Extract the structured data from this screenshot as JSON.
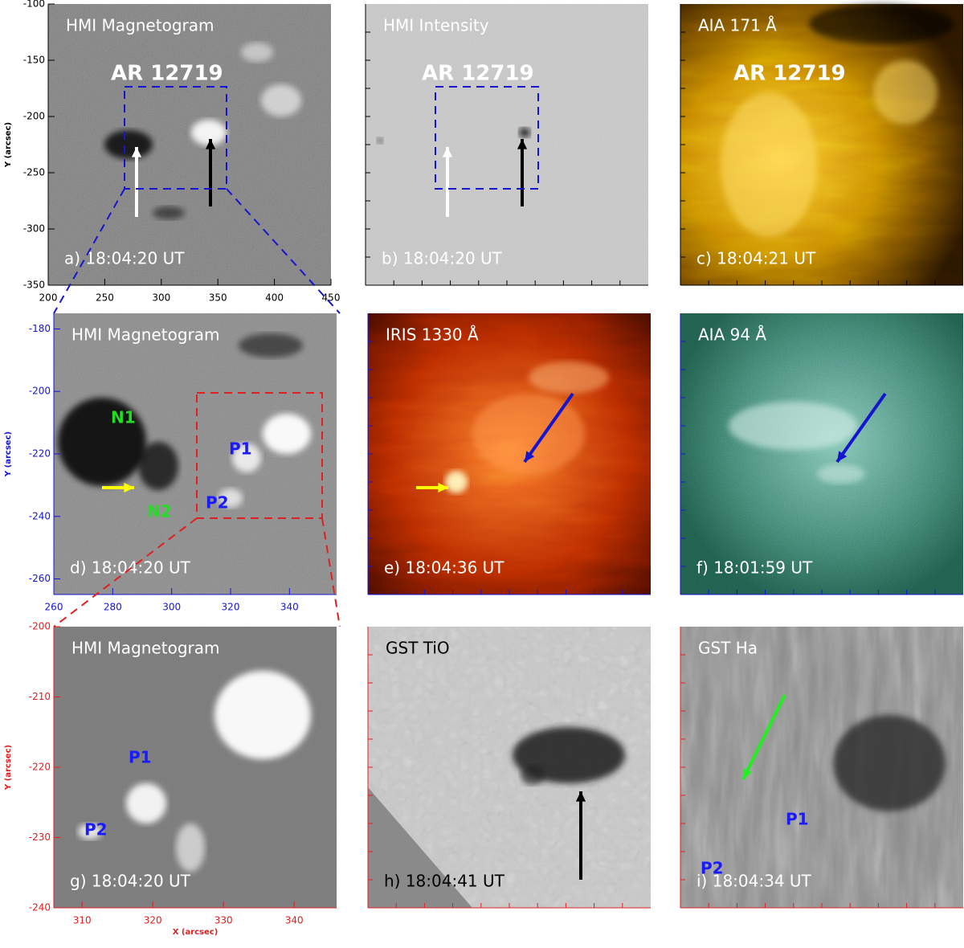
{
  "panels": [
    {
      "title": "HMI Magnetogram",
      "time": "a) 18:04:20 UT",
      "labels": [
        "AR 12719"
      ],
      "axes": {
        "xlim": [
          200,
          450
        ],
        "ylim": [
          -100,
          -350
        ],
        "xticks": [
          200,
          250,
          300,
          350,
          400,
          450
        ],
        "yticks": [
          -100,
          -150,
          -200,
          -250,
          -300,
          -350
        ],
        "ylabel": "Y (arcsec)"
      }
    },
    {
      "title": "HMI Intensity",
      "time": "b) 18:04:20 UT",
      "labels": [
        "AR 12719"
      ]
    },
    {
      "title": "AIA 171 Å",
      "time": "c) 18:04:21 UT",
      "labels": [
        "AR 12719"
      ]
    },
    {
      "title": "HMI Magnetogram",
      "time": "d) 18:04:20 UT",
      "labels": [
        "N1",
        "P1",
        "N2",
        "P2"
      ],
      "axes": {
        "xlim": [
          260,
          356
        ],
        "ylim": [
          -175,
          -265
        ],
        "xticks": [
          260,
          280,
          300,
          320,
          340
        ],
        "yticks": [
          -180,
          -200,
          -220,
          -240,
          -260
        ],
        "ylabel": "Y (arcsec)"
      }
    },
    {
      "title": "IRIS 1330 Å",
      "time": "e) 18:04:36 UT",
      "labels": []
    },
    {
      "title": "AIA 94 Å",
      "time": "f) 18:01:59 UT",
      "labels": []
    },
    {
      "title": "HMI Magnetogram",
      "time": "g) 18:04:20 UT",
      "labels": [
        "P1",
        "P2"
      ],
      "axes": {
        "xlim": [
          306,
          346
        ],
        "ylim": [
          -200,
          -240
        ],
        "xticks": [
          310,
          320,
          330,
          340
        ],
        "yticks": [
          -200,
          -210,
          -220,
          -230,
          -240
        ],
        "ylabel": "Y (arcsec)",
        "xlabel": "X (arcsec)"
      }
    },
    {
      "title": "GST TiO",
      "time": "h) 18:04:41 UT",
      "labels": []
    },
    {
      "title": "GST Ha",
      "time": "i) 18:04:34 UT",
      "labels": [
        "P1",
        "P2"
      ]
    }
  ]
}
